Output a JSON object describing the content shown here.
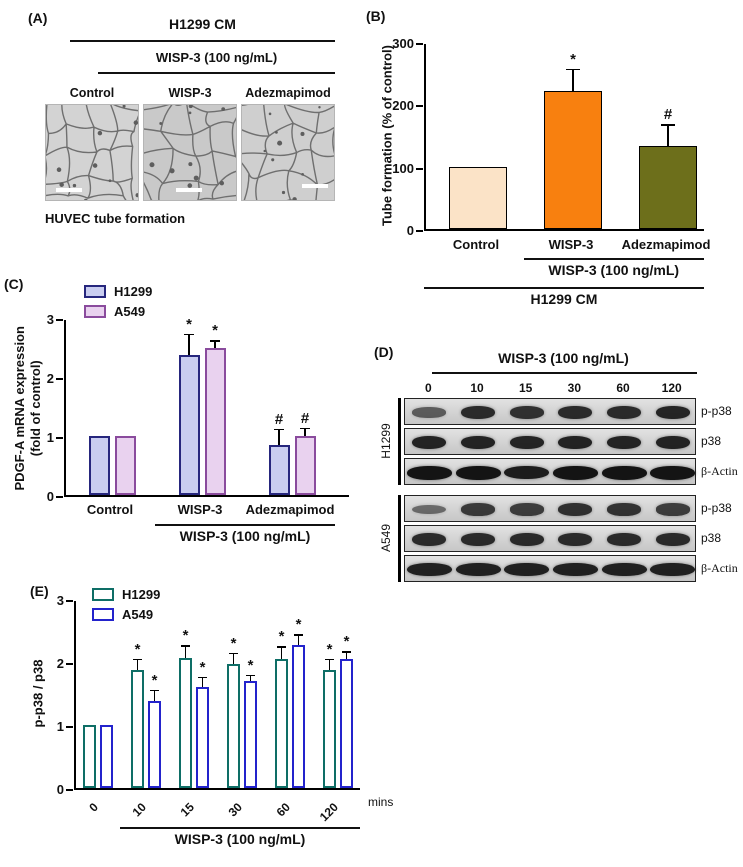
{
  "panels": {
    "a": {
      "tag": "(A)",
      "header": "H1299 CM",
      "subheader": "WISP-3 (100 ng/mL)",
      "image_labels": [
        "Control",
        "WISP-3",
        "Adezmapimod"
      ],
      "caption": "HUVEC tube formation"
    },
    "b": {
      "tag": "(B)"
    },
    "c": {
      "tag": "(C)"
    },
    "d": {
      "tag": "(D)",
      "header": "WISP-3 (100 ng/mL)",
      "timepoints": [
        "0",
        "10",
        "15",
        "30",
        "60",
        "120"
      ],
      "groups": [
        {
          "name": "H1299",
          "rows": [
            {
              "label": "p-p38",
              "band_intensities": [
                0.5,
                0.85,
                0.8,
                0.85,
                0.85,
                0.88
              ]
            },
            {
              "label": "p38",
              "band_intensities": [
                0.9,
                0.9,
                0.88,
                0.9,
                0.9,
                0.9
              ]
            },
            {
              "label": "β-Actin",
              "band_intensities": [
                1,
                1,
                0.95,
                1,
                1,
                1
              ]
            }
          ]
        },
        {
          "name": "A549",
          "rows": [
            {
              "label": "p-p38",
              "band_intensities": [
                0.4,
                0.75,
                0.72,
                0.8,
                0.78,
                0.72
              ]
            },
            {
              "label": "p38",
              "band_intensities": [
                0.85,
                0.85,
                0.85,
                0.85,
                0.85,
                0.85
              ]
            },
            {
              "label": "β-Actin",
              "band_intensities": [
                0.92,
                0.92,
                0.92,
                0.92,
                0.92,
                0.92
              ]
            }
          ]
        }
      ]
    },
    "e": {
      "tag": "(E)"
    }
  },
  "chart_data": [
    {
      "id": "B",
      "type": "bar",
      "ylabel": "Tube formation (% of control)",
      "ylim": [
        0,
        300
      ],
      "yticks": [
        0,
        100,
        200,
        300
      ],
      "categories": [
        "Control",
        "WISP-3",
        "Adezmapimod"
      ],
      "values": [
        100,
        222,
        133
      ],
      "errors": [
        0,
        35,
        35
      ],
      "sig": [
        "",
        "*",
        "#"
      ],
      "bar_colors": [
        "#fbe3c7",
        "#f8800f",
        "#6d6f1b"
      ],
      "bar_border": "#000000",
      "x_bracket_label": "WISP-3 (100 ng/mL)",
      "x_bracket_span": [
        1,
        2
      ],
      "x_footer_label": "H1299 CM"
    },
    {
      "id": "C",
      "type": "grouped_bar",
      "ylabel": "PDGF-A mRNA expression (fold of control)",
      "ylabel_lines": [
        "PDGF-A mRNA expression",
        "(fold of control)"
      ],
      "ylim": [
        0,
        3
      ],
      "yticks": [
        0,
        1,
        2,
        3
      ],
      "categories": [
        "Control",
        "WISP-3",
        "Adezmapimod"
      ],
      "series": [
        {
          "name": "H1299",
          "fill": "#c9cdf0",
          "border": "#26267d",
          "values": [
            1.0,
            2.38,
            0.85
          ],
          "errors": [
            0,
            0.35,
            0.27
          ],
          "sig": [
            "",
            "*",
            "#"
          ]
        },
        {
          "name": "A549",
          "fill": "#e9d2ef",
          "border": "#8a4b9d",
          "values": [
            1.0,
            2.5,
            1.0
          ],
          "errors": [
            0,
            0.12,
            0.14
          ],
          "sig": [
            "",
            "*",
            "#"
          ]
        }
      ],
      "x_bracket_label": "WISP-3 (100 ng/mL)",
      "x_bracket_span": [
        1,
        2
      ]
    },
    {
      "id": "E",
      "type": "grouped_bar",
      "ylabel": "p-p38 / p38",
      "ylim": [
        0,
        3
      ],
      "yticks": [
        0,
        1,
        2,
        3
      ],
      "categories": [
        "0",
        "10",
        "15",
        "30",
        "60",
        "120"
      ],
      "x_unit": "mins",
      "series": [
        {
          "name": "H1299",
          "fill": "#ffffff",
          "border": "#0e6e66",
          "values": [
            1.0,
            1.87,
            2.07,
            1.97,
            2.05,
            1.87
          ],
          "errors": [
            0,
            0.18,
            0.2,
            0.18,
            0.2,
            0.18
          ],
          "sig": [
            "",
            "*",
            "*",
            "*",
            "*",
            "*"
          ]
        },
        {
          "name": "A549",
          "fill": "#ffffff",
          "border": "#2323cc",
          "values": [
            1.0,
            1.38,
            1.6,
            1.7,
            2.27,
            2.05
          ],
          "errors": [
            0,
            0.18,
            0.17,
            0.1,
            0.17,
            0.12
          ],
          "sig": [
            "",
            "*",
            "*",
            "*",
            "*",
            "*"
          ]
        }
      ],
      "x_bracket_label": "WISP-3 (100 ng/mL)",
      "x_bracket_span": [
        1,
        5
      ]
    }
  ]
}
